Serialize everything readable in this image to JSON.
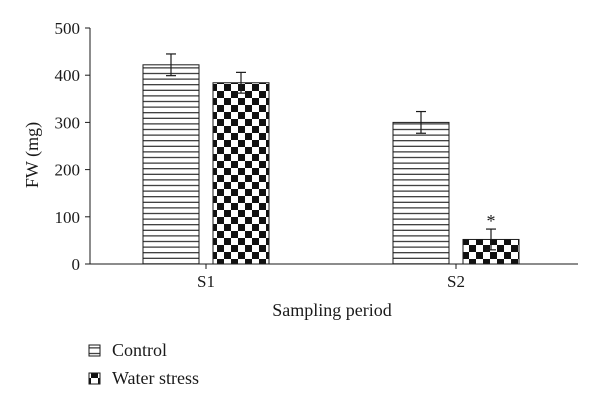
{
  "chart_data": {
    "type": "bar",
    "categories": [
      "S1",
      "S2"
    ],
    "series": [
      {
        "name": "Control",
        "pattern": "horizontal-lines",
        "values": [
          422,
          300
        ],
        "errors": [
          23,
          23
        ]
      },
      {
        "name": "Water stress",
        "pattern": "checkerboard",
        "values": [
          384,
          52
        ],
        "errors": [
          22,
          22
        ]
      }
    ],
    "xlabel": "Sampling period",
    "ylabel": "FW (mg)",
    "ylim": [
      0,
      500
    ],
    "yticks": [
      0,
      100,
      200,
      300,
      400,
      500
    ],
    "grid": false,
    "legend_position": "bottom-left",
    "annotations": [
      {
        "category": "S2",
        "series": "Water stress",
        "text": "*"
      }
    ],
    "colors": {
      "ink": "#1a1a1a",
      "background": "#ffffff"
    }
  }
}
